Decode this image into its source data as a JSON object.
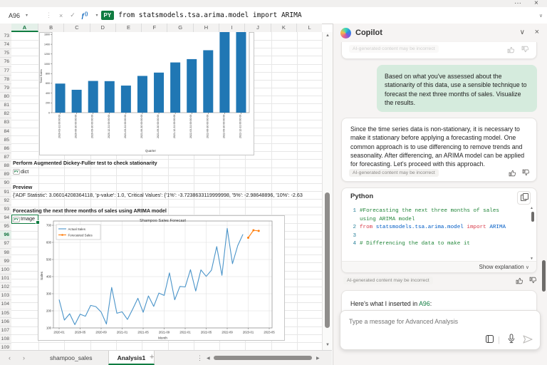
{
  "formula_bar": {
    "name_box": "A96",
    "language_badge": "PY",
    "formula": "from statsmodels.tsa.arima.model import ARIMA"
  },
  "icons": {
    "more": "···",
    "close": "×",
    "cancel": "×",
    "confirm": "✓",
    "separator": "⋮",
    "dropdown": "▾",
    "chevron_down": "∨",
    "function": "ƒ",
    "braces": "{}",
    "nav_left": "‹",
    "nav_right": "›",
    "add_sheet": "+",
    "scroll_up": "▲",
    "scroll_down": "▼",
    "scroll_left": "◀",
    "scroll_right": "▶"
  },
  "grid": {
    "columns": [
      "A",
      "B",
      "C",
      "D",
      "E",
      "F",
      "G",
      "H",
      "I",
      "J",
      "K",
      "L"
    ],
    "row_start": 73,
    "row_end": 112,
    "selected_cell": "A96",
    "selected_column": "A",
    "selected_row": 96,
    "cells": [
      {
        "row": 89,
        "text": "Perform Augmented Dickey-Fuller test to check stationarity",
        "bold": true,
        "py": false,
        "selected": false
      },
      {
        "row": 90,
        "text": "dict",
        "bold": false,
        "py": true,
        "selected": false
      },
      {
        "row": 92,
        "text": "Preview",
        "bold": true,
        "py": false,
        "selected": false
      },
      {
        "row": 93,
        "text": "{'ADF Statistic': 3.06014208364118, 'p-value': 1.0, 'Critical Values': {'1%': -3.7238633119999998, '5%': -2.98648896, '10%': -2.63",
        "bold": false,
        "py": false,
        "selected": false
      },
      {
        "row": 95,
        "text": "Forecasting the next three months of sales using ARIMA model",
        "bold": true,
        "py": false,
        "selected": false
      },
      {
        "row": 96,
        "text": "Image",
        "bold": false,
        "py": true,
        "selected": true
      }
    ]
  },
  "sheet_bar": {
    "tabs": [
      {
        "label": "shampoo_sales",
        "active": false
      },
      {
        "label": "Analysis1",
        "active": true
      }
    ]
  },
  "chart_data": [
    {
      "type": "bar",
      "title": "",
      "xlabel": "Quarter",
      "ylabel": "Total Sales",
      "categories": [
        "2020-03-31 00:00:00",
        "2020-06-30 00:00:00",
        "2020-09-30 00:00:00",
        "2020-12-31 00:00:00",
        "2021-03-31 00:00:00",
        "2021-06-30 00:00:00",
        "2021-09-30 00:00:00",
        "2021-12-31 00:00:00",
        "2022-03-31 00:00:00",
        "2022-06-30 00:00:00",
        "2022-09-30 00:00:00",
        "2022-12-31 00:00:00"
      ],
      "values": [
        595,
        468,
        649,
        645,
        554,
        752,
        820,
        1028,
        1096,
        1278,
        1665,
        1704
      ],
      "yticks": [
        0,
        200,
        400,
        600,
        800,
        1000,
        1200,
        1400,
        1600
      ],
      "ylim": [
        0,
        1700
      ],
      "bar_color": "#2077B4",
      "legend_position": "none",
      "grid": false
    },
    {
      "type": "line",
      "title": "Shampoo Sales Forecast",
      "xlabel": "Month",
      "ylabel": "Sales",
      "x_tick_labels": [
        "2020-01",
        "2020-05",
        "2020-09",
        "2021-01",
        "2021-05",
        "2021-09",
        "2022-01",
        "2022-05",
        "2022-09",
        "2023-01",
        "2023-05"
      ],
      "x_tick_interval_months": 4,
      "yticks": [
        100,
        200,
        300,
        400,
        500,
        600,
        700
      ],
      "ylim": [
        90,
        710
      ],
      "grid": true,
      "legend_position": "upper left",
      "series": [
        {
          "name": "Actual Sales",
          "color": "#4A94C9",
          "start_index": 0,
          "markers": false,
          "values": [
            266.0,
            145.9,
            183.1,
            119.3,
            180.3,
            168.5,
            231.8,
            224.5,
            192.8,
            122.9,
            336.5,
            185.9,
            194.3,
            149.5,
            210.1,
            273.3,
            191.4,
            287.0,
            226.0,
            303.6,
            289.9,
            421.6,
            264.5,
            342.3,
            339.7,
            440.4,
            315.9,
            439.3,
            401.3,
            437.4,
            575.5,
            407.6,
            682.0,
            475.3,
            581.3,
            646.9
          ]
        },
        {
          "name": "Forecasted Sales",
          "color": "#FF7F0E",
          "start_index": 36,
          "markers": true,
          "values": [
            627,
            671,
            667
          ]
        }
      ]
    }
  ],
  "copilot": {
    "title": "Copilot",
    "ai_disclaimer": "AI-generated content may be incorrect",
    "user_message": "Based on what you've assessed about the stationarity of this data, use a sensible technique to forecast the next three months of sales. Visualize the results.",
    "assistant_message": "Since the time series data is non-stationary, it is necessary to make it stationary before applying a forecasting model. One common approach is to use differencing to remove trends and seasonality. After differencing, an ARIMA model can be applied for forecasting. Let's proceed with this approach.",
    "code_card": {
      "language": "Python",
      "show_explanation": "Show explanation",
      "lines": [
        {
          "num": "1",
          "segments": [
            {
              "c": "comment",
              "t": "#Forecasting the next three months of sales using ARIMA model"
            }
          ]
        },
        {
          "num": "2",
          "segments": [
            {
              "c": "keyword",
              "t": "from "
            },
            {
              "c": "module",
              "t": "statsmodels.tsa.arima.model"
            },
            {
              "c": "keyword",
              "t": " import "
            },
            {
              "c": "module",
              "t": "ARIMA"
            }
          ]
        },
        {
          "num": "3",
          "segments": []
        },
        {
          "num": "4",
          "segments": [
            {
              "c": "comment",
              "t": "# Differencing the data to make it"
            }
          ]
        }
      ]
    },
    "inserted_note": {
      "prefix": "Here's what I inserted in ",
      "cell_ref": "A96",
      "suffix": ":"
    },
    "input": {
      "placeholder": "Type a message for Advanced Analysis"
    }
  },
  "colors": {
    "accent_green": "#107C41",
    "user_bubble": "#D5EBDD",
    "bar_blue": "#2077B4",
    "forecast_orange": "#FF7F0E"
  }
}
